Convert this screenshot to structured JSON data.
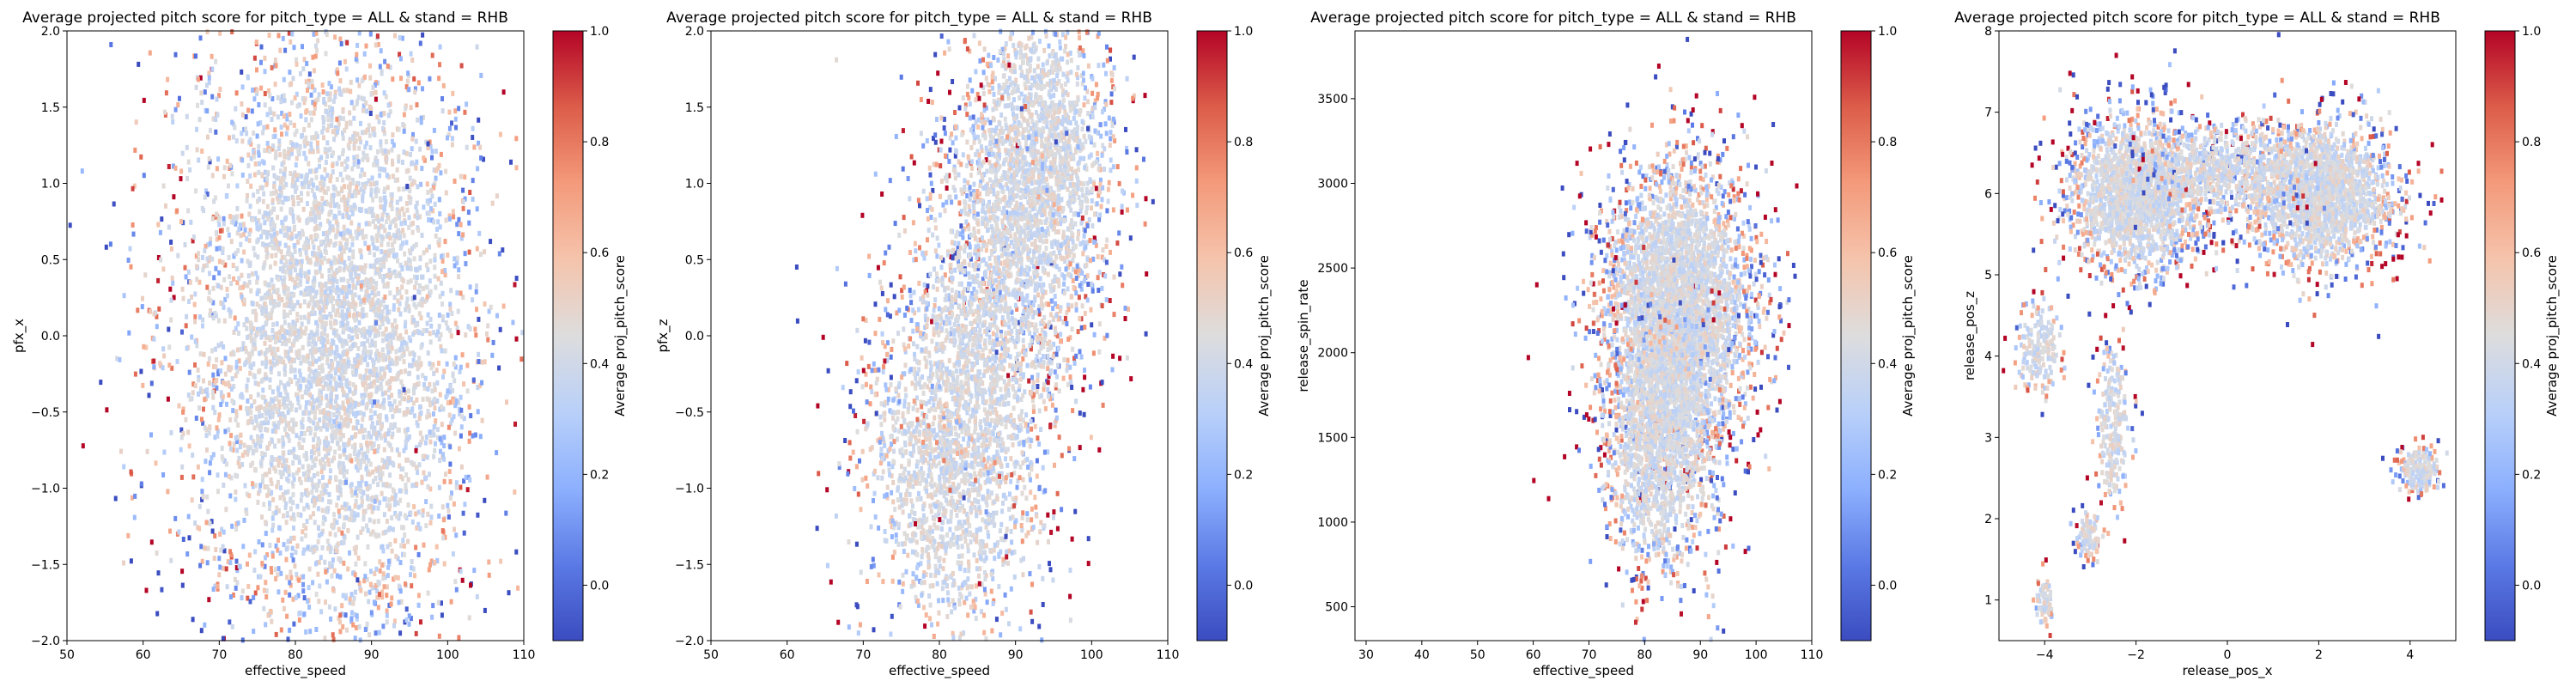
{
  "figure": {
    "colormap": [
      "#3b4cc0",
      "#5b7ae5",
      "#8db0fe",
      "#b9d0f9",
      "#dddddd",
      "#f5c4ac",
      "#f49a7b",
      "#dc5d4a",
      "#b40426"
    ]
  },
  "chart_data": [
    {
      "type": "heatmap",
      "title": "Average projected pitch score for pitch_type = ALL & stand = RHB",
      "xlabel": "effective_speed",
      "ylabel": "pfx_x",
      "colorbar_label": "Average proj_pitch_score",
      "xlim": [
        50,
        110
      ],
      "ylim": [
        -2.0,
        2.0
      ],
      "xticks": [
        50,
        60,
        70,
        80,
        90,
        100,
        110
      ],
      "yticks": [
        -2.0,
        -1.5,
        -1.0,
        -0.5,
        0.0,
        0.5,
        1.0,
        1.5,
        2.0
      ],
      "yticks_text": [
        "−2.0",
        "−1.5",
        "−1.0",
        "−0.5",
        "0.0",
        "0.5",
        "1.0",
        "1.5",
        "2.0"
      ],
      "clim": [
        -0.1,
        1.0
      ],
      "cticks": [
        0.0,
        0.2,
        0.4,
        0.6,
        0.8,
        1.0
      ],
      "cticks_text": [
        "0.0",
        "0.2",
        "0.4",
        "0.6",
        "0.8",
        "1.0"
      ],
      "cloud": [
        {
          "x": 86,
          "y": 0.0,
          "sx": 9,
          "sy": 1.05,
          "weight": 0.9
        },
        {
          "x": 75,
          "y": 0.1,
          "sx": 8,
          "sy": 1.0,
          "weight": 0.15
        }
      ]
    },
    {
      "type": "heatmap",
      "title": "Average projected pitch score for pitch_type = ALL & stand = RHB",
      "xlabel": "effective_speed",
      "ylabel": "pfx_z",
      "colorbar_label": "Average proj_pitch_score",
      "xlim": [
        50,
        110
      ],
      "ylim": [
        -2.0,
        2.0
      ],
      "xticks": [
        50,
        60,
        70,
        80,
        90,
        100,
        110
      ],
      "yticks": [
        -2.0,
        -1.5,
        -1.0,
        -0.5,
        0.0,
        0.5,
        1.0,
        1.5,
        2.0
      ],
      "yticks_text": [
        "−2.0",
        "−1.5",
        "−1.0",
        "−0.5",
        "0.0",
        "0.5",
        "1.0",
        "1.5",
        "2.0"
      ],
      "clim": [
        -0.1,
        1.0
      ],
      "cticks": [
        0.0,
        0.2,
        0.4,
        0.6,
        0.8,
        1.0
      ],
      "cticks_text": [
        "0.0",
        "0.2",
        "0.4",
        "0.6",
        "0.8",
        "1.0"
      ],
      "cloud": [
        {
          "x": 93,
          "y": 1.1,
          "sx": 5,
          "sy": 0.55,
          "weight": 0.5
        },
        {
          "x": 82,
          "y": -0.8,
          "sx": 6,
          "sy": 0.6,
          "weight": 0.45
        },
        {
          "x": 87,
          "y": 0.2,
          "sx": 6,
          "sy": 0.6,
          "weight": 0.3
        }
      ]
    },
    {
      "type": "heatmap",
      "title": "Average projected pitch score for pitch_type = ALL & stand = RHB",
      "xlabel": "effective_speed",
      "ylabel": "release_spin_rate",
      "colorbar_label": "Average proj_pitch_score",
      "xlim": [
        28,
        110
      ],
      "ylim": [
        300,
        3900
      ],
      "xticks": [
        30,
        40,
        50,
        60,
        70,
        80,
        90,
        100,
        110
      ],
      "yticks": [
        500,
        1000,
        1500,
        2000,
        2500,
        3000,
        3500
      ],
      "yticks_text": [
        "500",
        "1000",
        "1500",
        "2000",
        "2500",
        "3000",
        "3500"
      ],
      "clim": [
        -0.1,
        1.0
      ],
      "cticks": [
        0.0,
        0.2,
        0.4,
        0.6,
        0.8,
        1.0
      ],
      "cticks_text": [
        "0.0",
        "0.2",
        "0.4",
        "0.6",
        "0.8",
        "1.0"
      ],
      "cloud": [
        {
          "x": 86,
          "y": 2250,
          "sx": 7,
          "sy": 420,
          "weight": 0.75
        },
        {
          "x": 83,
          "y": 1450,
          "sx": 5,
          "sy": 380,
          "weight": 0.3
        }
      ]
    },
    {
      "type": "heatmap",
      "title": "Average projected pitch score for pitch_type = ALL & stand = RHB",
      "xlabel": "release_pos_x",
      "ylabel": "release_pos_z",
      "colorbar_label": "Average proj_pitch_score",
      "xlim": [
        -5.0,
        5.0
      ],
      "ylim": [
        0.5,
        8.0
      ],
      "xticks": [
        -4,
        -2,
        0,
        2,
        4
      ],
      "xticks_text": [
        "−4",
        "−2",
        "0",
        "2",
        "4"
      ],
      "yticks": [
        1,
        2,
        3,
        4,
        5,
        6,
        7,
        8
      ],
      "yticks_text": [
        "1",
        "2",
        "3",
        "4",
        "5",
        "6",
        "7",
        "8"
      ],
      "clim": [
        -0.1,
        1.0
      ],
      "cticks": [
        0.0,
        0.2,
        0.4,
        0.6,
        0.8,
        1.0
      ],
      "cticks_text": [
        "0.0",
        "0.2",
        "0.4",
        "0.6",
        "0.8",
        "1.0"
      ],
      "cloud": [
        {
          "x": -2.0,
          "y": 6.0,
          "sx": 0.75,
          "sy": 0.5,
          "weight": 0.4
        },
        {
          "x": 2.0,
          "y": 6.0,
          "sx": 0.85,
          "sy": 0.45,
          "weight": 0.4
        },
        {
          "x": 0.0,
          "y": 6.3,
          "sx": 0.8,
          "sy": 0.3,
          "weight": 0.12
        },
        {
          "x": -2.5,
          "y": 3.1,
          "sx": 0.2,
          "sy": 0.55,
          "weight": 0.05
        },
        {
          "x": -3.0,
          "y": 1.8,
          "sx": 0.15,
          "sy": 0.15,
          "weight": 0.02
        },
        {
          "x": -4.0,
          "y": 1.0,
          "sx": 0.1,
          "sy": 0.15,
          "weight": 0.015
        },
        {
          "x": -4.1,
          "y": 4.1,
          "sx": 0.25,
          "sy": 0.3,
          "weight": 0.04
        },
        {
          "x": 4.2,
          "y": 2.6,
          "sx": 0.22,
          "sy": 0.15,
          "weight": 0.04
        }
      ]
    }
  ]
}
